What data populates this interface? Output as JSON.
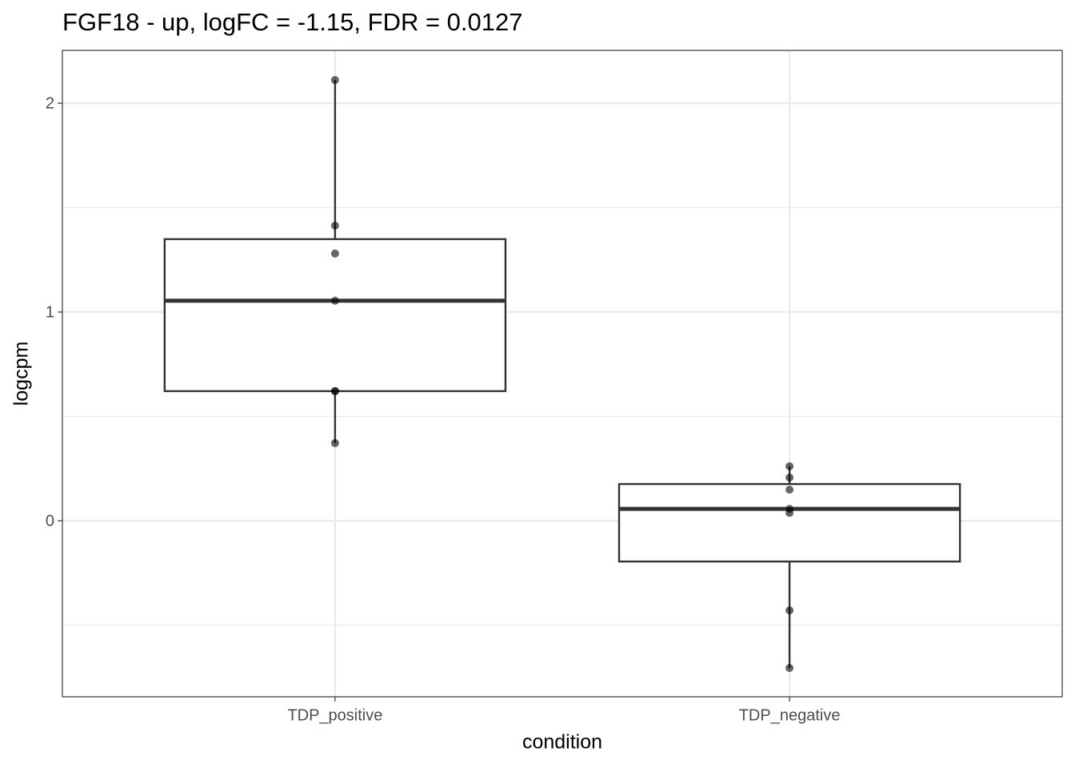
{
  "chart_data": {
    "type": "box",
    "title": "FGF18 - up, logFC = -1.15, FDR = 0.0127",
    "x_label": "condition",
    "y_label": "logcpm",
    "categories": [
      "TDP_positive",
      "TDP_negative"
    ],
    "boxes": [
      {
        "whislo": 0.372,
        "q1": 0.621,
        "med": 1.054,
        "q3": 1.349,
        "whishi": 2.111,
        "points": [
          2.111,
          1.414,
          1.28,
          1.054,
          0.621,
          0.621,
          0.372
        ]
      },
      {
        "whislo": -0.705,
        "q1": -0.195,
        "med": 0.057,
        "q3": 0.176,
        "whishi": 0.261,
        "points": [
          0.261,
          0.207,
          0.149,
          0.057,
          0.038,
          -0.429,
          -0.705
        ]
      }
    ],
    "ylim": [
      -0.843,
      2.253
    ],
    "yticks": [
      0,
      1,
      2
    ],
    "y_minor_gridlines": [
      -0.5,
      0.5,
      1.5
    ],
    "grid": true,
    "box_color": "#333333",
    "point_color": "#000000"
  }
}
